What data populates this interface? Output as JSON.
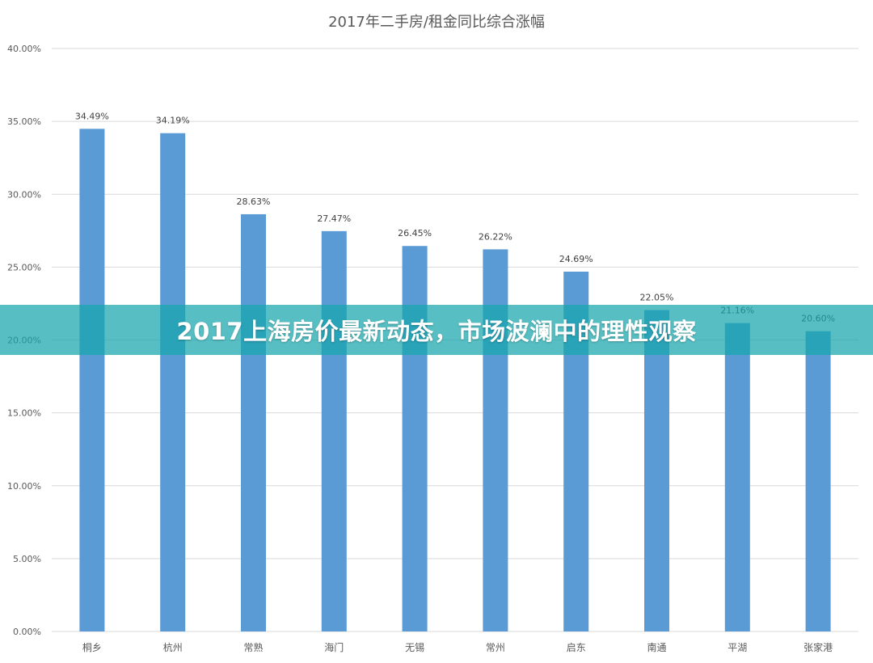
{
  "banner": {
    "text": "2017上海房价最新动态，市场波澜中的理性观察",
    "color": "#16a6ac"
  },
  "chart_data": {
    "type": "bar",
    "title": "2017年二手房/租金同比综合涨幅",
    "categories": [
      "桐乡",
      "杭州",
      "常熟",
      "海门",
      "无锡",
      "常州",
      "启东",
      "南通",
      "平湖",
      "张家港"
    ],
    "values": [
      34.49,
      34.19,
      28.63,
      27.47,
      26.45,
      26.22,
      24.69,
      22.05,
      21.16,
      20.6
    ],
    "data_labels": [
      "34.49%",
      "34.19%",
      "28.63%",
      "27.47%",
      "26.45%",
      "26.22%",
      "24.69%",
      "22.05%",
      "21.16%",
      "20.60%"
    ],
    "y_ticks": [
      0,
      5,
      10,
      15,
      20,
      25,
      30,
      35,
      40
    ],
    "y_tick_labels": [
      "0.00%",
      "5.00%",
      "10.00%",
      "15.00%",
      "20.00%",
      "25.00%",
      "30.00%",
      "35.00%",
      "40.00%"
    ],
    "ylim": [
      0,
      40
    ],
    "grid": true,
    "legend": "none",
    "bar_color": "#5b9bd5"
  }
}
